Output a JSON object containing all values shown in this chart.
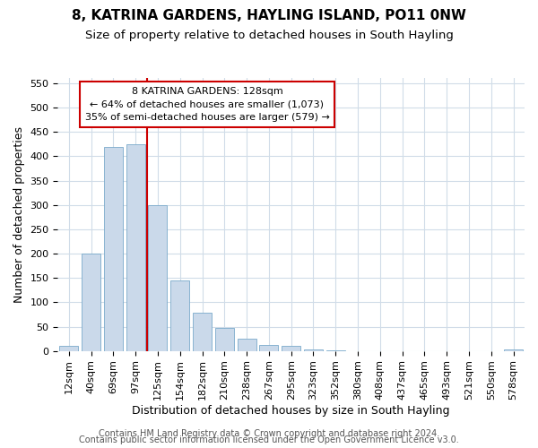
{
  "title": "8, KATRINA GARDENS, HAYLING ISLAND, PO11 0NW",
  "subtitle": "Size of property relative to detached houses in South Hayling",
  "xlabel": "Distribution of detached houses by size in South Hayling",
  "ylabel": "Number of detached properties",
  "bar_labels": [
    "12sqm",
    "40sqm",
    "69sqm",
    "97sqm",
    "125sqm",
    "154sqm",
    "182sqm",
    "210sqm",
    "238sqm",
    "267sqm",
    "295sqm",
    "323sqm",
    "352sqm",
    "380sqm",
    "408sqm",
    "437sqm",
    "465sqm",
    "493sqm",
    "521sqm",
    "550sqm",
    "578sqm"
  ],
  "bar_values": [
    10,
    200,
    420,
    425,
    300,
    145,
    78,
    48,
    25,
    13,
    10,
    3,
    1,
    0,
    0,
    0,
    0,
    0,
    0,
    0,
    3
  ],
  "bar_color": "#cad9ea",
  "bar_edge_color": "#7aaacb",
  "ylim": [
    0,
    560
  ],
  "yticks": [
    0,
    50,
    100,
    150,
    200,
    250,
    300,
    350,
    400,
    450,
    500,
    550
  ],
  "vline_x_index": 4,
  "vline_color": "#cc0000",
  "annotation_box_color": "#cc0000",
  "annotation_text_line1": "8 KATRINA GARDENS: 128sqm",
  "annotation_text_line2": "← 64% of detached houses are smaller (1,073)",
  "annotation_text_line3": "35% of semi-detached houses are larger (579) →",
  "footer_line1": "Contains HM Land Registry data © Crown copyright and database right 2024.",
  "footer_line2": "Contains public sector information licensed under the Open Government Licence v3.0.",
  "background_color": "#ffffff",
  "plot_background_color": "#ffffff",
  "grid_color": "#d0dce8",
  "title_fontsize": 11,
  "subtitle_fontsize": 9.5,
  "axis_label_fontsize": 9,
  "tick_fontsize": 8,
  "footer_fontsize": 7
}
